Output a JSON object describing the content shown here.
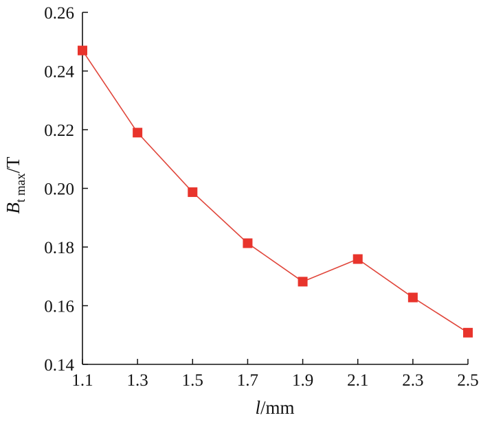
{
  "chart_data": {
    "type": "line",
    "x": [
      1.1,
      1.3,
      1.5,
      1.7,
      1.9,
      2.1,
      2.3,
      2.5
    ],
    "series": [
      {
        "values": [
          0.247,
          0.219,
          0.1987,
          0.1813,
          0.1682,
          0.1759,
          0.1628,
          0.1508
        ]
      }
    ],
    "xlabel": {
      "var": "l",
      "unit": "/mm"
    },
    "ylabel": {
      "var": "B",
      "sub": "t max",
      "unit": "/T"
    },
    "xlim": [
      1.1,
      2.5
    ],
    "ylim": [
      0.14,
      0.26
    ],
    "xticks": [
      "1.1",
      "1.3",
      "1.5",
      "1.7",
      "1.9",
      "2.1",
      "2.3",
      "2.5"
    ],
    "yticks": [
      "0.14",
      "0.16",
      "0.18",
      "0.20",
      "0.22",
      "0.24",
      "0.26"
    ],
    "grid": false,
    "colors": {
      "line": "#e0453a",
      "marker": "#e8342c",
      "axis": "#111111"
    }
  }
}
